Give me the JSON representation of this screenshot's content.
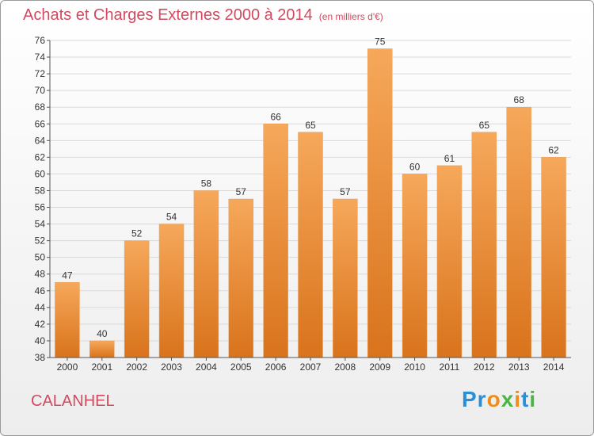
{
  "header": {
    "title": "Achats et Charges Externes 2000 à 2014",
    "subtitle": "(en milliers d'€)"
  },
  "footer": {
    "commune": "CALANHEL",
    "logo": "Proxiti"
  },
  "colors": {
    "accent": "#d24a60",
    "bar_top": "#f6a85a",
    "bar_bottom": "#d9731c"
  },
  "chart_data": {
    "type": "bar",
    "title": "Achats et Charges Externes 2000 à 2014",
    "subtitle": "(en milliers d'€)",
    "categories": [
      "2000",
      "2001",
      "2002",
      "2003",
      "2004",
      "2005",
      "2006",
      "2007",
      "2008",
      "2009",
      "2010",
      "2011",
      "2012",
      "2013",
      "2014"
    ],
    "values": [
      47,
      40,
      52,
      54,
      58,
      57,
      66,
      65,
      57,
      75,
      60,
      61,
      65,
      68,
      62
    ],
    "ylim": [
      38,
      76
    ],
    "yticks": [
      38,
      40,
      42,
      44,
      46,
      48,
      50,
      52,
      54,
      56,
      58,
      60,
      62,
      64,
      66,
      68,
      70,
      72,
      74,
      76
    ],
    "grid": "horizontal",
    "xlabel": "",
    "ylabel": ""
  }
}
